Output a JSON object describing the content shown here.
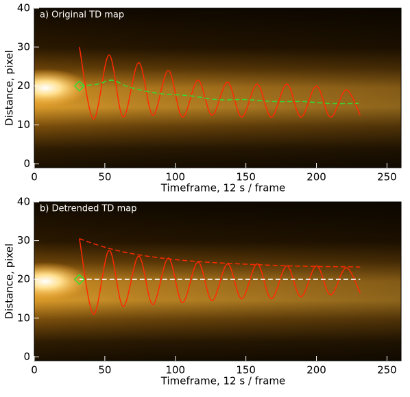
{
  "chart_data": [
    {
      "type": "line",
      "title": "a) Original TD map",
      "x_label": "Timeframe, 12 s / frame",
      "y_label": "Distance, pixel",
      "xlim": [
        0,
        260
      ],
      "ylim": [
        -1,
        40
      ],
      "xticks": [
        0,
        50,
        100,
        150,
        200,
        250
      ],
      "yticks": [
        0,
        10,
        20,
        30,
        40
      ],
      "series": [
        {
          "color": "#ff2a00",
          "dashed": false,
          "x": [
            32,
            42,
            53,
            63,
            74,
            84,
            95,
            105,
            116,
            126,
            137,
            147,
            158,
            168,
            179,
            189,
            200,
            210,
            221,
            231
          ],
          "values": [
            30,
            11.5,
            28,
            12,
            26,
            12.5,
            24,
            12,
            21.5,
            12.5,
            21,
            12,
            20.5,
            12,
            20.5,
            12,
            20,
            12,
            19,
            12.5
          ]
        },
        {
          "color": "#33dd33",
          "dashed": true,
          "x": [
            32,
            45,
            55,
            65,
            75,
            90,
            110,
            130,
            150,
            170,
            190,
            210,
            230
          ],
          "values": [
            20,
            20.5,
            21.5,
            20,
            19,
            18,
            17.5,
            16.5,
            16.5,
            16,
            16,
            15.5,
            15.5
          ]
        }
      ],
      "marker": {
        "x": 32,
        "y": 20,
        "color": "#33dd33"
      }
    },
    {
      "type": "line",
      "title": "b) Detrended TD map",
      "x_label": "Timeframe, 12 s / frame",
      "y_label": "Distance, pixel",
      "xlim": [
        0,
        260
      ],
      "ylim": [
        -1,
        40
      ],
      "xticks": [
        0,
        50,
        100,
        150,
        200,
        250
      ],
      "yticks": [
        0,
        10,
        20,
        30,
        40
      ],
      "series": [
        {
          "color": "#ff2a00",
          "dashed": false,
          "x": [
            32,
            42,
            53,
            63,
            74,
            84,
            95,
            105,
            116,
            126,
            137,
            147,
            158,
            168,
            179,
            189,
            200,
            210,
            221,
            231
          ],
          "values": [
            30.5,
            11,
            27.5,
            13,
            26,
            13.5,
            25.5,
            14,
            24.5,
            14.5,
            24,
            15,
            24,
            15,
            23.5,
            15.5,
            23.5,
            16,
            23,
            16.5
          ]
        },
        {
          "color": "#ff2a00",
          "dashed": true,
          "x": [
            32,
            53,
            80,
            120,
            180,
            231
          ],
          "values": [
            30.5,
            28,
            26,
            24.5,
            23.5,
            23.2
          ]
        },
        {
          "color": "#ffffff",
          "dashed": true,
          "x": [
            32,
            231
          ],
          "values": [
            20,
            20
          ]
        }
      ],
      "marker": {
        "x": 32,
        "y": 20,
        "color": "#33dd33"
      }
    }
  ]
}
